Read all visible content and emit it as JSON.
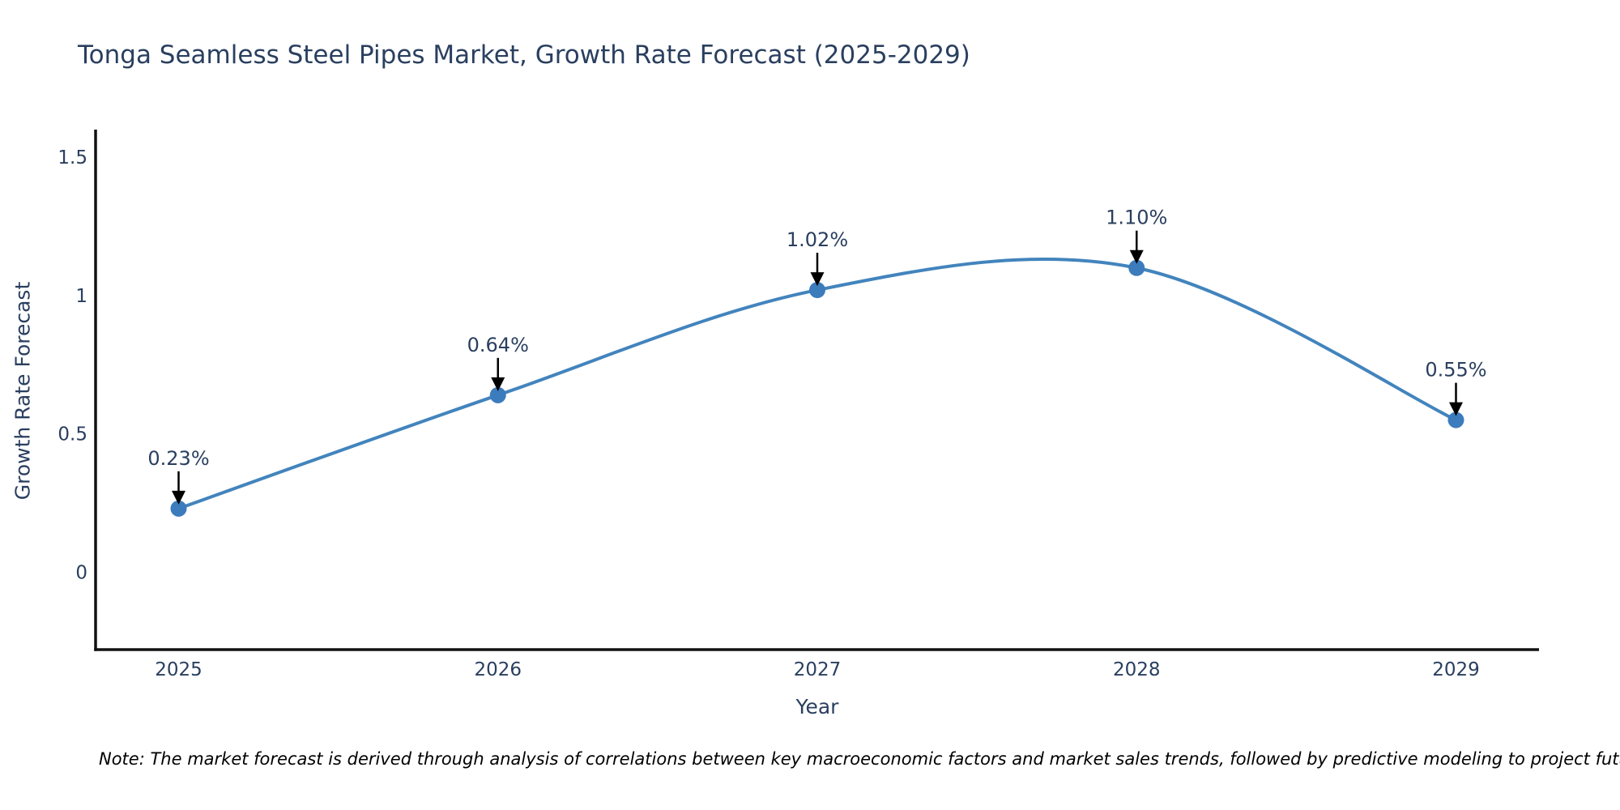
{
  "figure": {
    "note": "Note: The market forecast is derived through analysis of correlations between key macroeconomic factors and market sales trends, followed by predictive modeling to project future sales"
  },
  "chart_data": {
    "type": "line",
    "line_shape": "spline",
    "title": "Tonga Seamless Steel Pipes Market, Growth Rate Forecast (2025-2029)",
    "xlabel": "Year",
    "ylabel": "Growth Rate Forecast",
    "x": [
      2025,
      2026,
      2027,
      2028,
      2029
    ],
    "values": [
      0.23,
      0.64,
      1.02,
      1.1,
      0.55
    ],
    "point_labels": [
      "0.23%",
      "0.64%",
      "1.02%",
      "1.10%",
      "0.55%"
    ],
    "x_tick_labels": [
      "2025",
      "2026",
      "2027",
      "2028",
      "2029"
    ],
    "y_ticks": [
      0,
      0.5,
      1,
      1.5
    ],
    "y_tick_labels": [
      "0",
      "0.5",
      "1",
      "1.5"
    ],
    "xlim": [
      2024.74,
      2029.26
    ],
    "ylim": [
      -0.28,
      1.6
    ],
    "grid": false,
    "legend": "none",
    "markers": true,
    "annotation_arrows": true,
    "colors": {
      "line": "#4284bd",
      "marker": "#3c7cbc",
      "axis": "#111111",
      "text": "#2a3f5f",
      "annotation_text": "#2a3f5f",
      "annotation_arrow": "#000000",
      "note_text": "#000000",
      "background": "#ffffff"
    }
  }
}
